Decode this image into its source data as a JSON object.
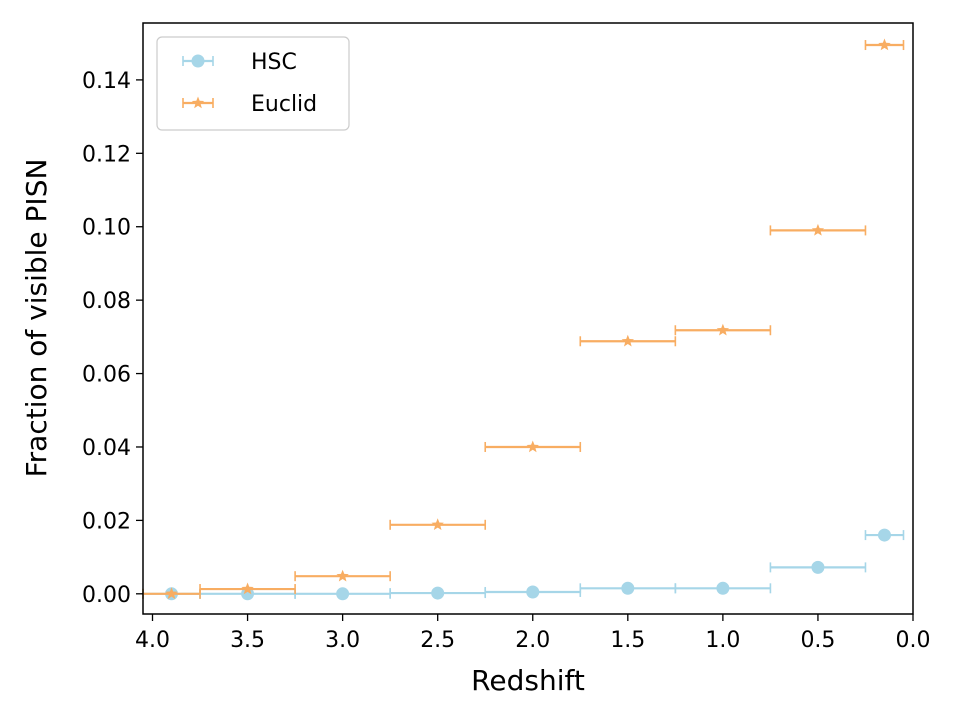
{
  "chart_data": {
    "type": "scatter",
    "xlabel": "Redshift",
    "ylabel": "Fraction of visible PISN",
    "xlim": [
      4.05,
      0.0
    ],
    "ylim": [
      -0.0055,
      0.1555
    ],
    "x_inverted": true,
    "xticks": [
      "4.0",
      "3.5",
      "3.0",
      "2.5",
      "2.0",
      "1.5",
      "1.0",
      "0.5",
      "0.0"
    ],
    "xtick_values": [
      4.0,
      3.5,
      3.0,
      2.5,
      2.0,
      1.5,
      1.0,
      0.5,
      0.0
    ],
    "yticks": [
      "0.00",
      "0.02",
      "0.04",
      "0.06",
      "0.08",
      "0.10",
      "0.12",
      "0.14"
    ],
    "ytick_values": [
      0.0,
      0.02,
      0.04,
      0.06,
      0.08,
      0.1,
      0.12,
      0.14
    ],
    "grid": false,
    "legend_position": "top-left",
    "series": [
      {
        "name": "HSC",
        "color": "#a6d6e8",
        "marker": "circle",
        "points": [
          {
            "x": 3.9,
            "y": 0.0,
            "xerr": [
              0.15,
              0.15
            ]
          },
          {
            "x": 3.5,
            "y": 0.0,
            "xerr": [
              0.25,
              0.25
            ]
          },
          {
            "x": 3.0,
            "y": 0.0,
            "xerr": [
              0.25,
              0.25
            ]
          },
          {
            "x": 2.5,
            "y": 0.0002,
            "xerr": [
              0.25,
              0.25
            ]
          },
          {
            "x": 2.0,
            "y": 0.0005,
            "xerr": [
              0.25,
              0.25
            ]
          },
          {
            "x": 1.5,
            "y": 0.0015,
            "xerr": [
              0.25,
              0.25
            ]
          },
          {
            "x": 1.0,
            "y": 0.0015,
            "xerr": [
              0.25,
              0.25
            ]
          },
          {
            "x": 0.5,
            "y": 0.0072,
            "xerr": [
              0.25,
              0.25
            ]
          },
          {
            "x": 0.15,
            "y": 0.016,
            "xerr": [
              0.1,
              0.1
            ]
          }
        ]
      },
      {
        "name": "Euclid",
        "color": "#f8ad62",
        "marker": "star",
        "points": [
          {
            "x": 3.9,
            "y": 0.0,
            "xerr": [
              0.15,
              0.15
            ]
          },
          {
            "x": 3.5,
            "y": 0.0013,
            "xerr": [
              0.25,
              0.25
            ]
          },
          {
            "x": 3.0,
            "y": 0.0048,
            "xerr": [
              0.25,
              0.25
            ]
          },
          {
            "x": 2.5,
            "y": 0.0188,
            "xerr": [
              0.25,
              0.25
            ]
          },
          {
            "x": 2.0,
            "y": 0.04,
            "xerr": [
              0.25,
              0.25
            ]
          },
          {
            "x": 1.5,
            "y": 0.0688,
            "xerr": [
              0.25,
              0.25
            ]
          },
          {
            "x": 1.0,
            "y": 0.0718,
            "xerr": [
              0.25,
              0.25
            ]
          },
          {
            "x": 0.5,
            "y": 0.099,
            "xerr": [
              0.25,
              0.25
            ]
          },
          {
            "x": 0.15,
            "y": 0.1495,
            "xerr": [
              0.1,
              0.1
            ]
          }
        ]
      }
    ]
  }
}
